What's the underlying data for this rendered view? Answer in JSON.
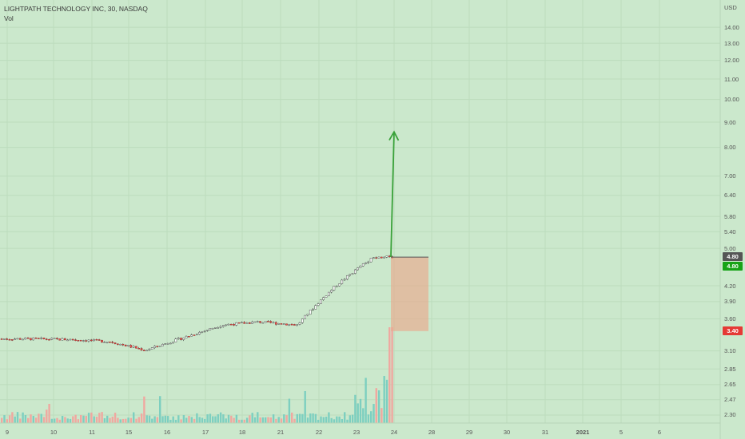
{
  "header": {
    "title": "LIGHTPATH TECHNOLOGY INC, 30, NASDAQ",
    "indicator": "Vol"
  },
  "axis": {
    "currency": "USD",
    "y_ticks": [
      "14.00",
      "13.00",
      "12.00",
      "11.00",
      "10.00",
      "9.00",
      "8.00",
      "7.00",
      "6.40",
      "5.80",
      "5.40",
      "5.00",
      "4.20",
      "3.90",
      "3.60",
      "3.10",
      "2.85",
      "2.65",
      "2.47",
      "2.30"
    ],
    "x_ticks": [
      "9",
      "10",
      "11",
      "15",
      "16",
      "17",
      "18",
      "21",
      "22",
      "23",
      "24",
      "28",
      "29",
      "30",
      "31",
      "2021",
      "5",
      "6"
    ]
  },
  "price_badges": {
    "last_price": "4.80",
    "current_price": "4.80",
    "stop_level": "3.40"
  },
  "colors": {
    "background": "#cbe8cc",
    "up_candle": "#26a69a",
    "down_candle": "#ef5350",
    "arrow": "#3aa23a",
    "zone": "#e9a98e",
    "badge_last": "#555555",
    "badge_current": "#17a317",
    "badge_stop": "#e53935"
  },
  "chart_data": {
    "type": "candlestick",
    "title": "LIGHTPATH TECHNOLOGY INC, 30, NASDAQ",
    "ylabel": "USD",
    "y_scale": "log",
    "ylim": [
      2.2,
      14.9
    ],
    "x_categories": [
      "9",
      "10",
      "11",
      "15",
      "16",
      "17",
      "18",
      "21",
      "22",
      "23",
      "24",
      "28",
      "29",
      "30",
      "31",
      "2021",
      "5",
      "6"
    ],
    "approx_session_close_prices": [
      {
        "date": "9",
        "close": 3.28
      },
      {
        "date": "10",
        "close": 3.27
      },
      {
        "date": "11",
        "close": 3.24
      },
      {
        "date": "15",
        "close": 3.11
      },
      {
        "date": "16",
        "close": 3.3
      },
      {
        "date": "17",
        "close": 3.5
      },
      {
        "date": "18",
        "close": 3.55
      },
      {
        "date": "21",
        "close": 3.5
      },
      {
        "date": "22",
        "close": 4.2
      },
      {
        "date": "23",
        "close": 4.8
      }
    ],
    "last_price": 4.8,
    "annotations": [
      {
        "type": "arrow",
        "from_price": 4.8,
        "to_price": 8.6,
        "from_date": "23",
        "to_date": "24"
      },
      {
        "type": "stop_zone",
        "top_price": 4.8,
        "bottom_price": 3.4,
        "from_date": "23",
        "to_date": "28"
      }
    ],
    "grid": true,
    "volume_panel": true
  }
}
